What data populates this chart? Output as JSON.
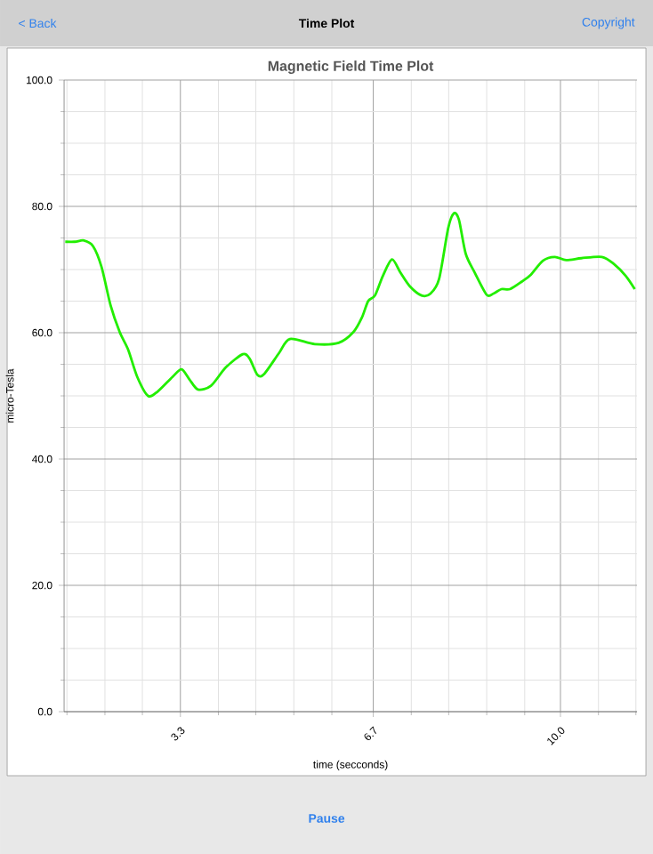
{
  "chart_data": {
    "type": "line",
    "title": "Magnetic Field Time Plot",
    "xlabel": "time (secconds)",
    "ylabel": "micro-Tesla",
    "annotations": [
      "< Back",
      "Time Plot",
      "Copyright",
      "Pause"
    ],
    "x": [
      1.27,
      1.44,
      1.6,
      1.76,
      1.91,
      2.07,
      2.23,
      2.38,
      2.54,
      2.73,
      2.9,
      3.16,
      3.32,
      3.46,
      3.61,
      3.84,
      4.1,
      4.4,
      4.52,
      4.66,
      4.78,
      5.04,
      5.23,
      5.67,
      6.09,
      6.35,
      6.5,
      6.61,
      6.73,
      6.87,
      7.03,
      7.18,
      7.34,
      7.55,
      7.71,
      7.86,
      8.02,
      8.12,
      8.21,
      8.33,
      8.49,
      8.7,
      8.82,
      8.96,
      9.11,
      9.32,
      9.48,
      9.69,
      9.9,
      10.1,
      10.37,
      10.73,
      10.94,
      11.15,
      11.31
    ],
    "series": [
      {
        "color": "#22ee00",
        "values": [
          74.4,
          74.4,
          74.6,
          73.7,
          70.4,
          64.3,
          60.1,
          57.3,
          53.0,
          50.0,
          50.7,
          53.0,
          54.2,
          52.6,
          51.0,
          51.6,
          54.5,
          56.6,
          55.9,
          53.3,
          53.5,
          56.8,
          59.0,
          58.2,
          58.4,
          60.1,
          62.4,
          65.0,
          65.9,
          69.0,
          71.6,
          69.5,
          67.4,
          65.9,
          66.2,
          68.5,
          76.5,
          78.9,
          77.9,
          72.5,
          69.5,
          66.0,
          66.2,
          66.9,
          66.9,
          68.1,
          69.2,
          71.4,
          72.0,
          71.5,
          71.8,
          72.0,
          70.9,
          69.0,
          66.9
        ]
      }
    ],
    "xlim": [
      1.25,
      11.35
    ],
    "ylim": [
      0,
      100
    ],
    "xticks": [
      {
        "value": 1.3,
        "label": null
      },
      {
        "value": 1.97,
        "label": null
      },
      {
        "value": 2.63,
        "label": null
      },
      3.3,
      {
        "value": 3.97,
        "label": null
      },
      {
        "value": 4.63,
        "label": null
      },
      {
        "value": 5.3,
        "label": null
      },
      {
        "value": 5.97,
        "label": null
      },
      6.7,
      {
        "value": 7.37,
        "label": null
      },
      {
        "value": 8.03,
        "label": null
      },
      {
        "value": 8.7,
        "label": null
      },
      {
        "value": 9.37,
        "label": null
      },
      {
        "value": 10.0,
        "label": "10.0"
      },
      {
        "value": 10.67,
        "label": null
      },
      {
        "value": 11.33,
        "label": null
      }
    ],
    "yticks": [
      {
        "value": 0,
        "label": "0.0"
      },
      {
        "value": 5,
        "label": null
      },
      {
        "value": 10,
        "label": null
      },
      {
        "value": 15,
        "label": null
      },
      {
        "value": 20,
        "label": "20.0"
      },
      {
        "value": 25,
        "label": null
      },
      {
        "value": 30,
        "label": null
      },
      {
        "value": 35,
        "label": null
      },
      {
        "value": 40,
        "label": "40.0"
      },
      {
        "value": 45,
        "label": null
      },
      {
        "value": 50,
        "label": null
      },
      {
        "value": 55,
        "label": null
      },
      {
        "value": 60,
        "label": "60.0"
      },
      {
        "value": 65,
        "label": null
      },
      {
        "value": 70,
        "label": null
      },
      {
        "value": 75,
        "label": null
      },
      {
        "value": 80,
        "label": "80.0"
      },
      {
        "value": 85,
        "label": null
      },
      {
        "value": 90,
        "label": null
      },
      {
        "value": 95,
        "label": null
      },
      {
        "value": 100,
        "label": "100.0"
      }
    ],
    "grid": true,
    "marker": "none",
    "line_style": "solid"
  }
}
